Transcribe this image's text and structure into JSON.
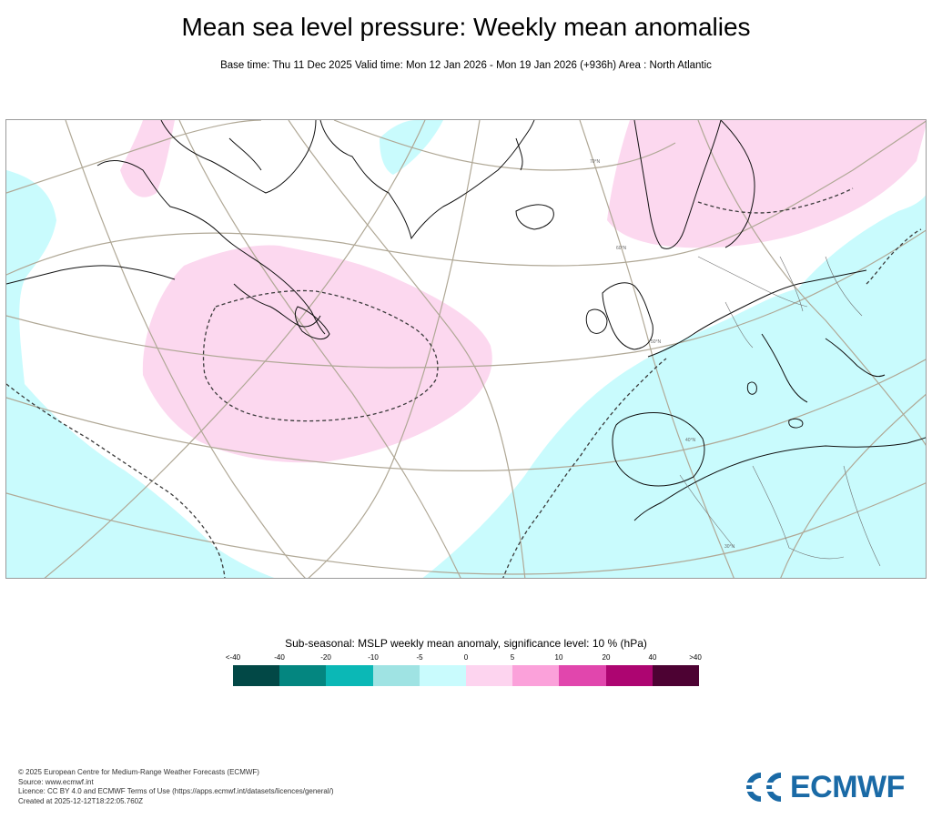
{
  "header": {
    "title": "Mean sea level pressure: Weekly mean anomalies",
    "subtitle": "Base time: Thu 11 Dec 2025 Valid time: Mon 12 Jan 2026 - Mon 19 Jan 2026 (+936h) Area : North Atlantic"
  },
  "map": {
    "region": "North Atlantic",
    "lat_labels": [
      "70°N",
      "60°N",
      "50°N",
      "40°N",
      "30°N"
    ],
    "colors": {
      "positive_5_10": "#fcd5ee",
      "negative_0_5": "#c9fbfd",
      "graticule": "#b0a896",
      "coast": "#111111"
    }
  },
  "legend": {
    "title": "Sub-seasonal: MSLP weekly mean anomaly, significance level: 10 % (hPa)",
    "ticks": [
      "<-40",
      "-40",
      "-20",
      "-10",
      "-5",
      "0",
      "5",
      "10",
      "20",
      "40",
      ">40"
    ],
    "colors": [
      "#024846",
      "#048680",
      "#0bb8b6",
      "#9fe3e3",
      "#c9fbfd",
      "#fdd4ef",
      "#fba1da",
      "#e146ad",
      "#ad0571",
      "#4d0233"
    ]
  },
  "footer": {
    "copyright": "© 2025 European Centre for Medium-Range Weather Forecasts (ECMWF)",
    "source": "Source: www.ecmwf.int",
    "licence": "Licence: CC BY 4.0 and ECMWF Terms of Use (https://apps.ecmwf.int/datasets/licences/general/)",
    "created": "Created at 2025-12-12T18:22:05.760Z"
  },
  "logo": {
    "text": "ECMWF",
    "icon": "ecmwf-logo-icon",
    "color": "#1a6aa6"
  }
}
